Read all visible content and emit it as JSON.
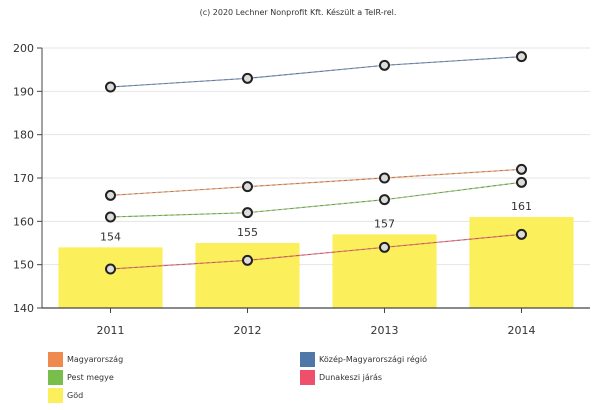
{
  "chart_data": {
    "type": "bar",
    "title": "(c) 2020 Lechner Nonprofit Kft. Készült a TeIR-rel.",
    "categories": [
      "2011",
      "2012",
      "2013",
      "2014"
    ],
    "ylim": [
      140,
      200
    ],
    "yticks": [
      140,
      150,
      160,
      170,
      180,
      190,
      200
    ],
    "grid": true,
    "legend_position": "bottom",
    "bars": {
      "name": "Göd",
      "color": "#fbf05c",
      "values": [
        154,
        155,
        157,
        161
      ],
      "labels": [
        "154",
        "155",
        "157",
        "161"
      ]
    },
    "series": [
      {
        "name": "Magyarország",
        "color": "#ee8a4e",
        "values": [
          166,
          168,
          170,
          172
        ]
      },
      {
        "name": "Közép-Magyarországi régió",
        "color": "#4f77a8",
        "values": [
          191,
          193,
          196,
          198
        ]
      },
      {
        "name": "Pest megye",
        "color": "#78be4b",
        "values": [
          161,
          162,
          165,
          169
        ]
      },
      {
        "name": "Dunakeszi járás",
        "color": "#ee4f6a",
        "values": [
          149,
          151,
          154,
          157
        ]
      }
    ]
  }
}
